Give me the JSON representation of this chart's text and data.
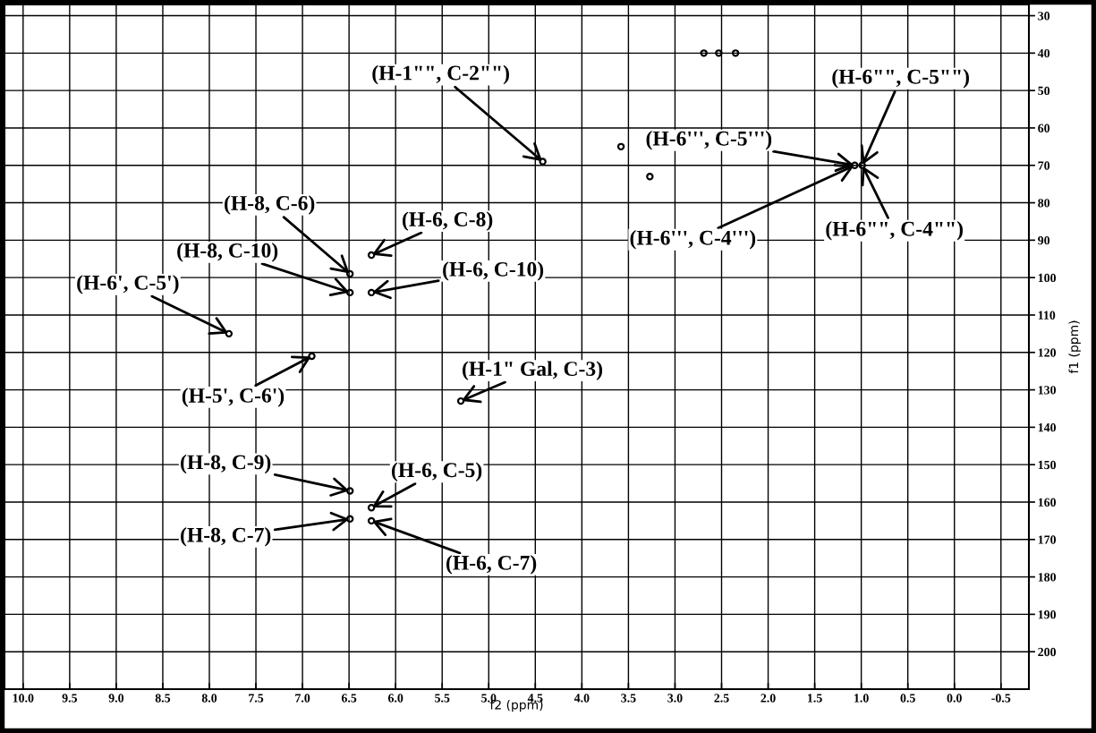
{
  "chart_data": {
    "type": "scatter",
    "xlabel": "f2 (ppm)",
    "ylabel": "f1 (ppm)",
    "xlim": [
      10.2,
      -0.8
    ],
    "ylim": [
      210,
      27
    ],
    "xticks": [
      {
        "value": 10,
        "label": "10.0"
      },
      9.5,
      {
        "value": 9,
        "label": "9.0"
      },
      8.5,
      {
        "value": 8,
        "label": "8.0"
      },
      7.5,
      {
        "value": 7,
        "label": "7.0"
      },
      6.5,
      {
        "value": 6,
        "label": "6.0"
      },
      5.5,
      {
        "value": 5,
        "label": "5.0"
      },
      4.5,
      {
        "value": 4,
        "label": "4.0"
      },
      3.5,
      {
        "value": 3,
        "label": "3.0"
      },
      2.5,
      {
        "value": 2,
        "label": "2.0"
      },
      1.5,
      {
        "value": 1,
        "label": "1.0"
      },
      0.5,
      {
        "value": 0,
        "label": "0.0"
      },
      -0.5
    ],
    "yticks": [
      30,
      40,
      50,
      60,
      70,
      80,
      90,
      100,
      110,
      120,
      130,
      140,
      150,
      160,
      170,
      180,
      190,
      200
    ],
    "grid": true,
    "marker": "circle",
    "legend": false,
    "series": [
      {
        "color": "#000000",
        "x": [
          2.69,
          2.53,
          2.35,
          4.42,
          3.58,
          3.27,
          1.07,
          0.99,
          6.26,
          6.49,
          6.49,
          6.26,
          7.79,
          6.9,
          5.3,
          6.49,
          6.49,
          6.26,
          6.26
        ],
        "values": [
          40,
          40,
          40,
          69,
          65,
          73,
          70,
          70,
          94,
          99,
          104,
          104,
          115,
          121,
          133,
          157,
          164.5,
          161.5,
          165
        ]
      }
    ],
    "annotations": [
      {
        "text": "(H-1\"\", C-2\"\")",
        "x": 4.42,
        "y": 69
      },
      {
        "text": "(H-6\"\", C-5\"\")",
        "x": 0.99,
        "y": 70
      },
      {
        "text": "(H-6''', C-5''')",
        "x": 1.07,
        "y": 70
      },
      {
        "text": "(H-6''', C-4''')",
        "x": 1.07,
        "y": 70
      },
      {
        "text": "(H-6\"\", C-4\"\")",
        "x": 0.99,
        "y": 70
      },
      {
        "text": "(H-8, C-6)",
        "x": 6.49,
        "y": 99
      },
      {
        "text": "(H-6, C-8)",
        "x": 6.26,
        "y": 94
      },
      {
        "text": "(H-8, C-10)",
        "x": 6.49,
        "y": 104
      },
      {
        "text": "(H-6, C-10)",
        "x": 6.26,
        "y": 104
      },
      {
        "text": "(H-6', C-5')",
        "x": 7.79,
        "y": 115
      },
      {
        "text": "(H-5', C-6')",
        "x": 6.9,
        "y": 121
      },
      {
        "text": "(H-1\" Gal, C-3)",
        "x": 5.3,
        "y": 133
      },
      {
        "text": "(H-8, C-9)",
        "x": 6.49,
        "y": 157
      },
      {
        "text": "(H-6, C-5)",
        "x": 6.26,
        "y": 161.5
      },
      {
        "text": "(H-8, C-7)",
        "x": 6.49,
        "y": 164.5
      },
      {
        "text": "(H-6, C-7)",
        "x": 6.26,
        "y": 165
      }
    ]
  }
}
